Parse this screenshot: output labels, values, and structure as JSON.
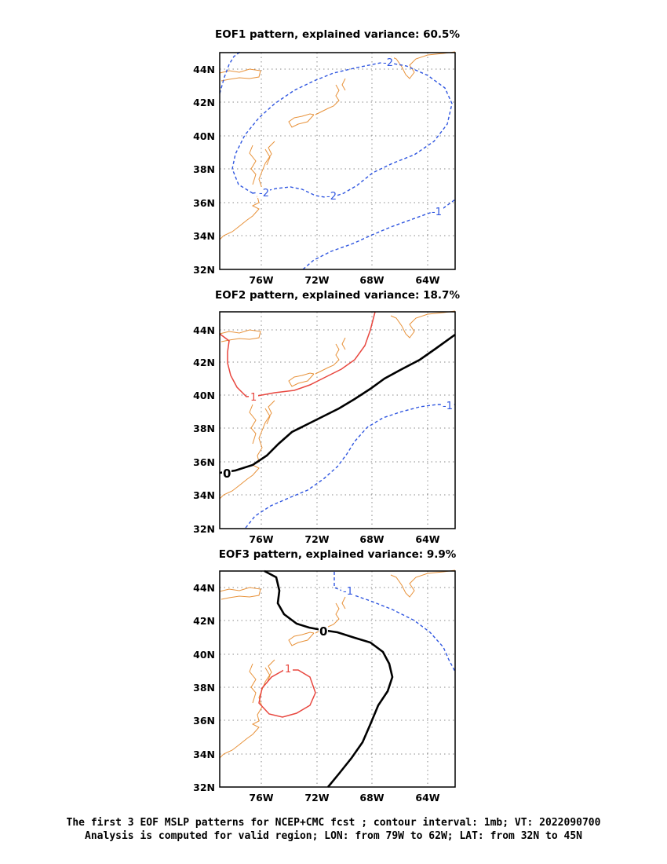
{
  "panels": [
    {
      "title": "EOF1 pattern, explained variance: 60.5%",
      "contour_labels": [
        "-2",
        "-2",
        "-2",
        "-1",
        "-1"
      ]
    },
    {
      "title": "EOF2 pattern, explained variance: 18.7%",
      "contour_labels": [
        "1",
        "0",
        "-1"
      ]
    },
    {
      "title": "EOF3 pattern, explained variance: 9.9%",
      "contour_labels": [
        "1",
        "0",
        "-1"
      ]
    }
  ],
  "lat_labels": [
    "44N",
    "42N",
    "40N",
    "38N",
    "36N",
    "34N",
    "32N"
  ],
  "lon_labels": [
    "76W",
    "72W",
    "68W",
    "64W"
  ],
  "caption": {
    "line1": "The first 3 EOF MSLP patterns for NCEP+CMC fcst ; contour interval: 1mb; VT: 2022090700",
    "line2": "Analysis is computed for valid region; LON: from 79W to 62W; LAT: from 32N to 45N"
  },
  "colors": {
    "positive": "#e8473f",
    "negative": "#2f56e0",
    "zero": "#000000",
    "coastline": "#e8923a",
    "grid": "#8a8a8a"
  }
}
